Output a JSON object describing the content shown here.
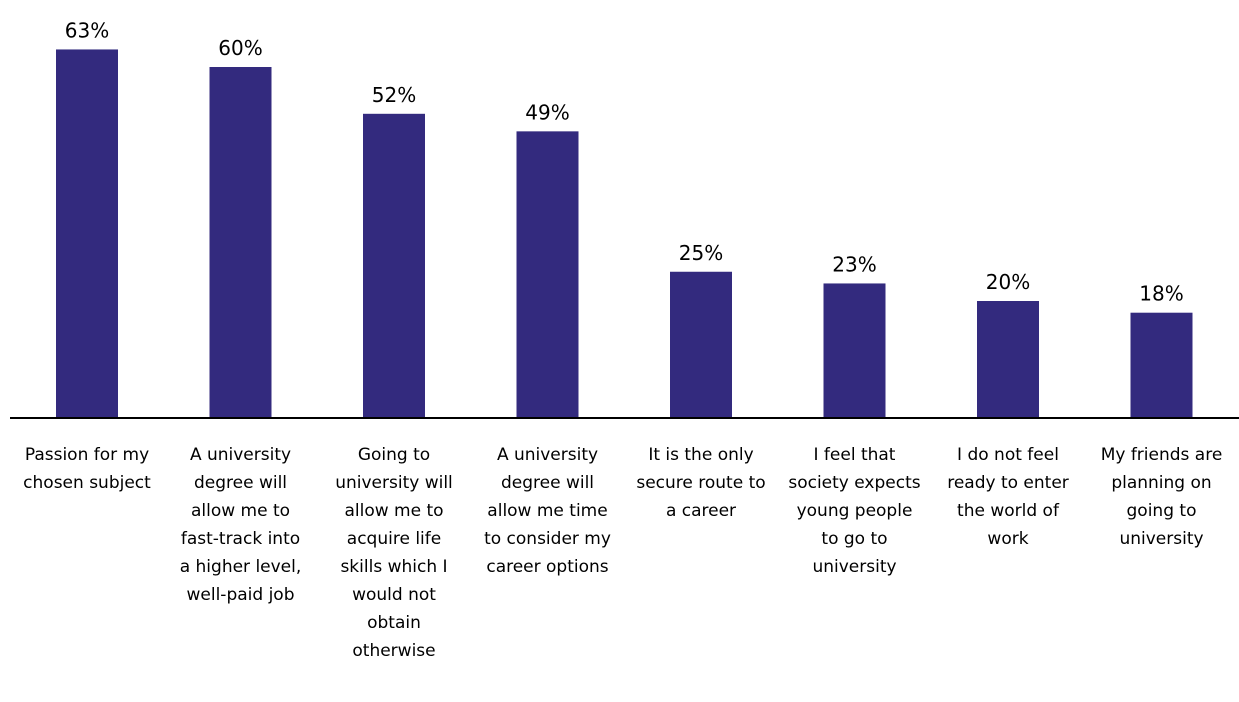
{
  "chart_data": {
    "type": "bar",
    "title": "",
    "xlabel": "",
    "ylabel": "",
    "ylim": [
      0,
      70
    ],
    "value_suffix": "%",
    "bar_color": "#332a7e",
    "grid": false,
    "categories": [
      [
        "Passion for my",
        "chosen subject"
      ],
      [
        "A university",
        "degree will",
        "allow me to",
        "fast-track into",
        "a higher level,",
        "well-paid job"
      ],
      [
        "Going to",
        "university will",
        "allow me to",
        "acquire life",
        "skills which I",
        "would not",
        "obtain",
        "otherwise"
      ],
      [
        "A university",
        "degree will",
        "allow me time",
        "to consider my",
        "career options"
      ],
      [
        "It is the only",
        "secure route to",
        "a career"
      ],
      [
        "I feel that",
        "society expects",
        "young people",
        "to go to",
        "university"
      ],
      [
        "I do not feel",
        "ready to enter",
        "the world of",
        "work"
      ],
      [
        "My friends are",
        "planning on",
        "going to",
        "university"
      ]
    ],
    "values": [
      63,
      60,
      52,
      49,
      25,
      23,
      20,
      18
    ],
    "value_labels": [
      "63%",
      "60%",
      "52%",
      "49%",
      "25%",
      "23%",
      "20%",
      "18%"
    ]
  }
}
